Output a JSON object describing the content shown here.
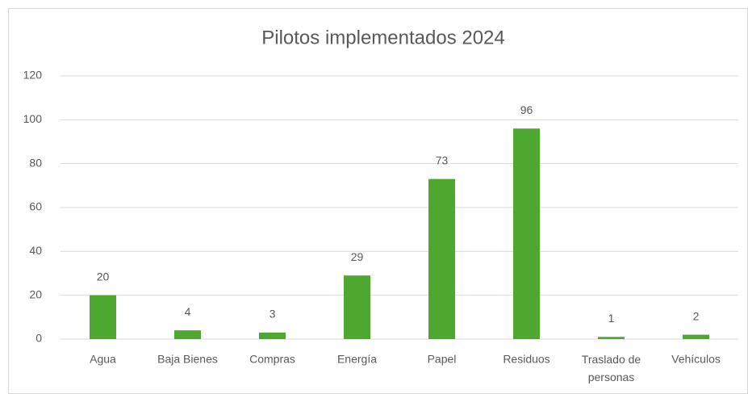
{
  "chart_data": {
    "type": "bar",
    "title": "Pilotos implementados 2024",
    "categories": [
      "Agua",
      "Baja Bienes",
      "Compras",
      "Energía",
      "Papel",
      "Residuos",
      "Traslado de personas",
      "Vehículos"
    ],
    "values": [
      20,
      4,
      3,
      29,
      73,
      96,
      1,
      2
    ],
    "color": "#4ea72e",
    "ylim": [
      0,
      120
    ],
    "yticks": [
      0,
      20,
      40,
      60,
      80,
      100,
      120
    ],
    "grid": true,
    "data_labels": true
  }
}
